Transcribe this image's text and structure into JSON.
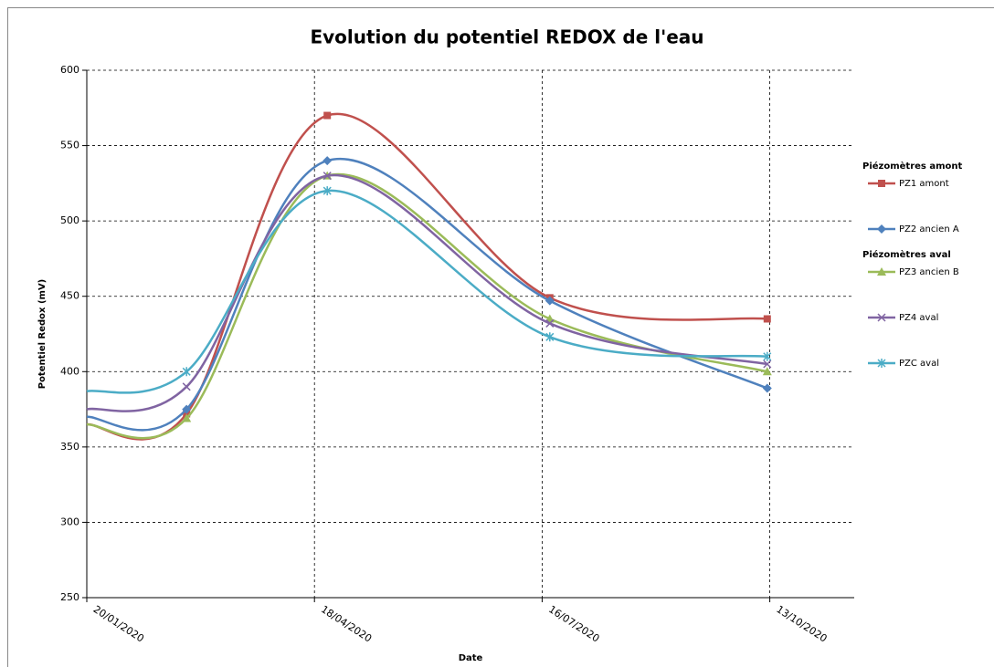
{
  "chart_data": {
    "type": "line",
    "title": "Evolution du potentiel REDOX de l'eau",
    "x_label": "Date",
    "y_label": "Potentiel Redox (mV)",
    "x": [
      "2020-01-20",
      "2020-02-28",
      "2020-04-23",
      "2020-07-19",
      "2020-10-12"
    ],
    "xlim": [
      "2020-01-20",
      "2020-11-15"
    ],
    "xticks": [
      {
        "value": "2020-01-20",
        "label": "20/01/2020"
      },
      {
        "value": "2020-04-18",
        "label": "18/04/2020"
      },
      {
        "value": "2020-07-16",
        "label": "16/07/2020"
      },
      {
        "value": "2020-10-13",
        "label": "13/10/2020"
      }
    ],
    "ylim": [
      250,
      600
    ],
    "yticks": [
      250,
      300,
      350,
      400,
      450,
      500,
      550,
      600
    ],
    "grid": true,
    "smooth": true,
    "legend": "right",
    "series_groups": [
      {
        "name": "Piézomètres amont",
        "series": [
          {
            "name": "PZ1 amont",
            "color": "#c0504d",
            "marker": "square",
            "values": [
              365,
              372,
              570,
              449,
              435
            ]
          },
          {
            "name": "PZ2 ancien A",
            "color": "#4f81bd",
            "marker": "diamond",
            "values": [
              370,
              375,
              540,
              447,
              389
            ]
          }
        ]
      },
      {
        "name": "Piézomètres aval",
        "series": [
          {
            "name": "PZ3 ancien B",
            "color": "#9bbb59",
            "marker": "triangle",
            "values": [
              365,
              369,
              530,
              435,
              400
            ]
          },
          {
            "name": "PZ4 aval",
            "color": "#8064a2",
            "marker": "x",
            "values": [
              375,
              390,
              530,
              432,
              405
            ]
          },
          {
            "name": "PZC aval",
            "color": "#4bacc6",
            "marker": "star",
            "values": [
              387,
              400,
              520,
              423,
              410
            ]
          }
        ]
      }
    ]
  }
}
